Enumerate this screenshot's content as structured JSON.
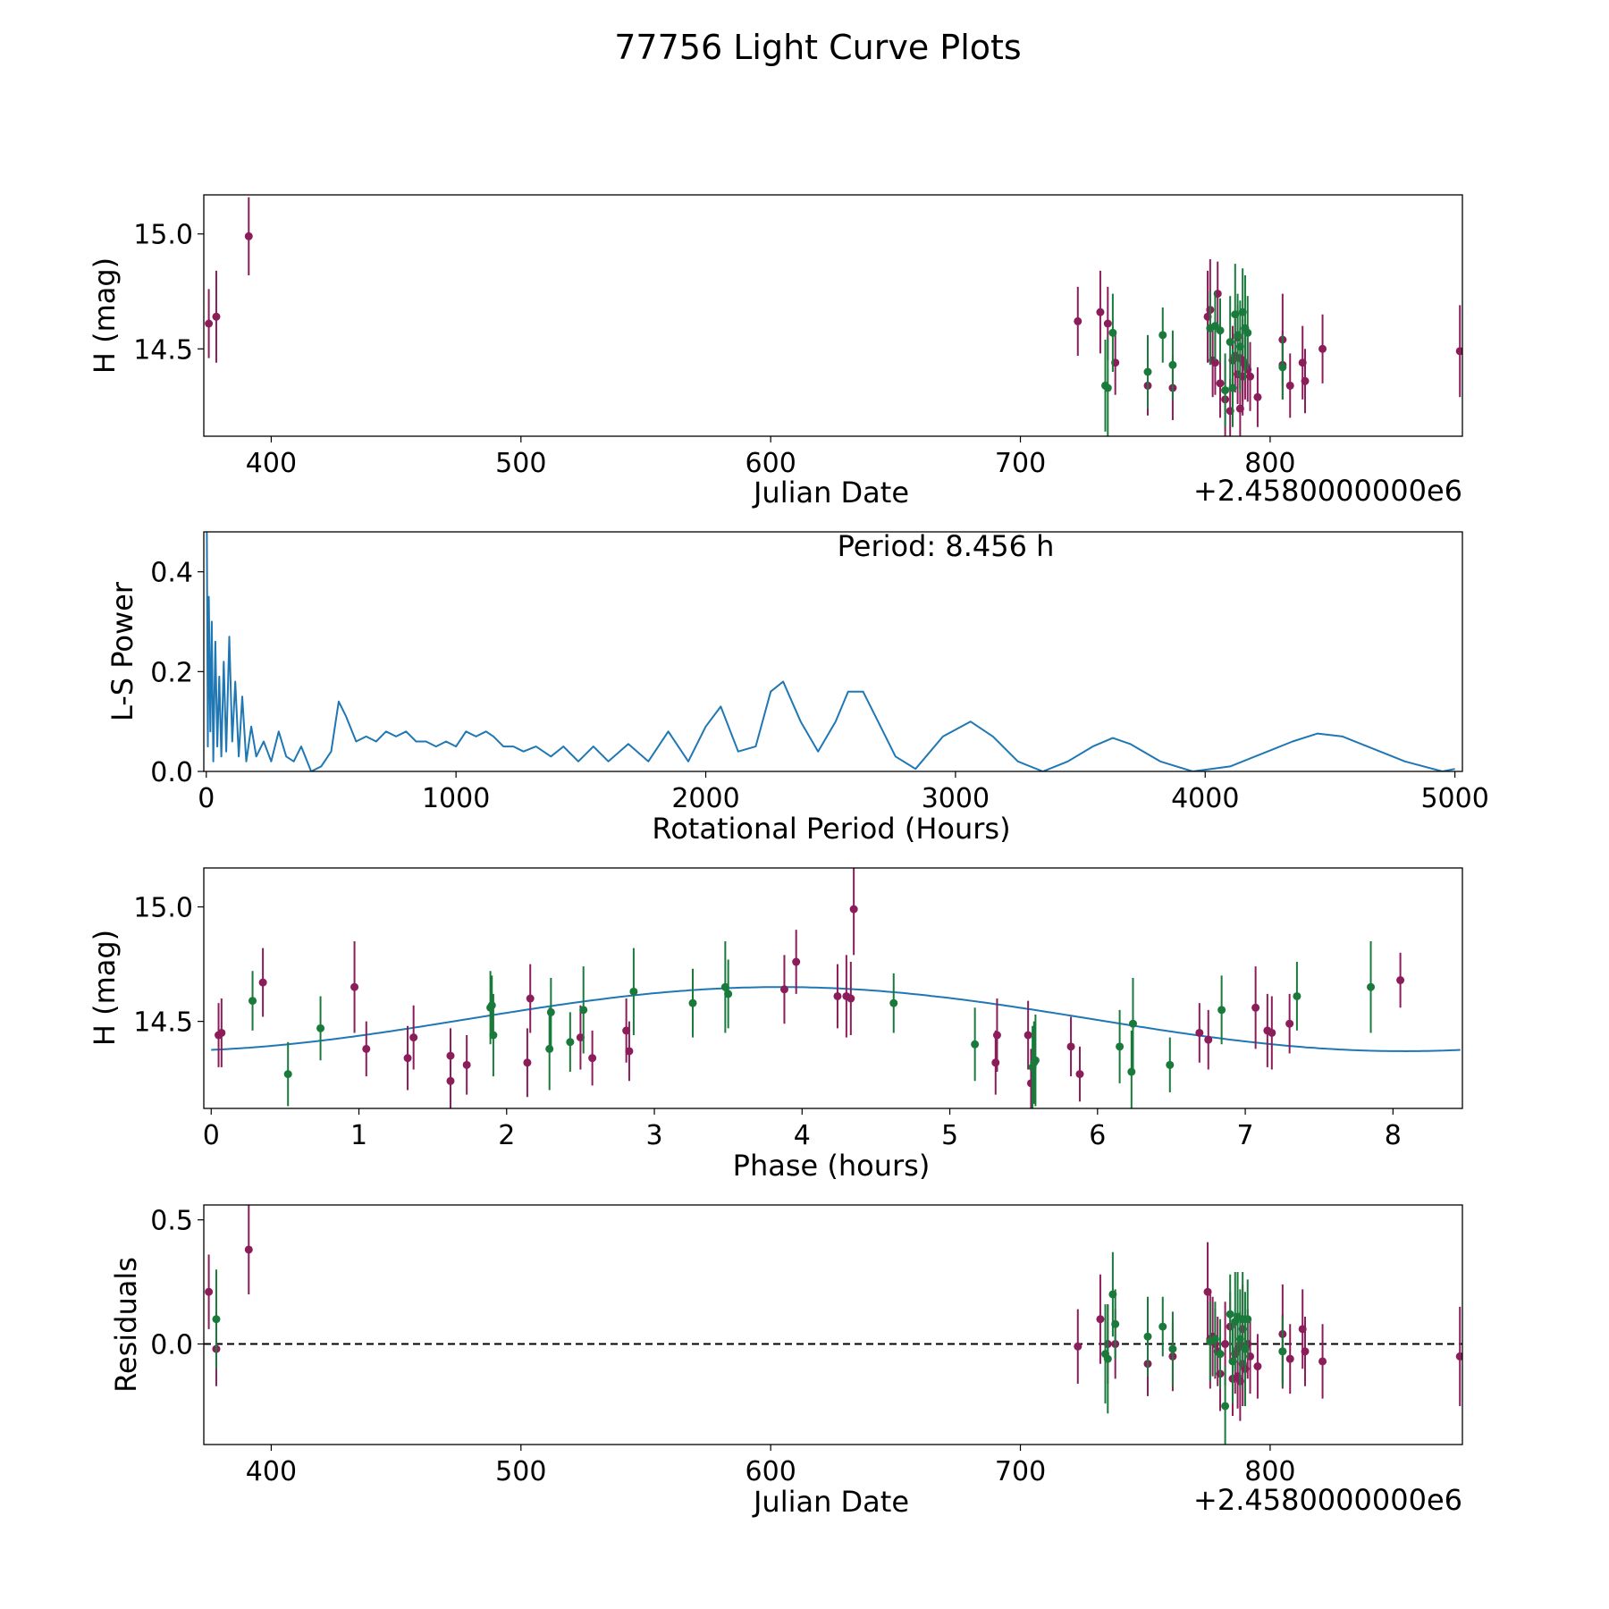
{
  "figure_title": "77756 Light Curve Plots",
  "colors": {
    "magenta": "#8b1e5a",
    "green": "#1a7a3c",
    "curve": "#1f77b4",
    "zero_line": "#000000"
  },
  "chart_data": [
    {
      "id": "lightcurve",
      "type": "scatter",
      "title": "",
      "xlabel": "Julian Date",
      "ylabel": "H (mag)",
      "x_offset_label": "+2.4580000000e6",
      "xlim": [
        373,
        877
      ],
      "ylim": [
        14.12,
        15.17
      ],
      "xticks": [
        400,
        500,
        600,
        700,
        800
      ],
      "yticks": [
        14.5,
        15.0
      ],
      "series": [
        {
          "name": "band-1",
          "color": "#8b1e5a",
          "x": [
            375,
            378,
            391,
            723,
            732,
            735,
            738,
            751,
            761,
            775,
            776,
            777,
            778,
            779,
            780,
            782,
            784,
            785,
            786,
            787,
            787,
            788,
            788,
            789,
            789,
            790,
            791,
            792,
            795,
            805,
            805,
            808,
            813,
            814,
            821,
            876
          ],
          "y": [
            14.61,
            14.64,
            14.99,
            14.62,
            14.66,
            14.61,
            14.44,
            14.34,
            14.33,
            14.64,
            14.67,
            14.45,
            14.44,
            14.74,
            14.35,
            14.28,
            14.23,
            14.45,
            14.47,
            14.39,
            14.55,
            14.24,
            14.46,
            14.38,
            14.45,
            14.43,
            14.41,
            14.38,
            14.29,
            14.54,
            14.43,
            14.34,
            14.44,
            14.36,
            14.5,
            14.49
          ],
          "yerr": [
            0.15,
            0.2,
            0.17,
            0.15,
            0.18,
            0.16,
            0.14,
            0.13,
            0.14,
            0.2,
            0.22,
            0.16,
            0.14,
            0.14,
            0.15,
            0.17,
            0.14,
            0.15,
            0.16,
            0.13,
            0.14,
            0.16,
            0.13,
            0.17,
            0.18,
            0.15,
            0.14,
            0.15,
            0.13,
            0.2,
            0.15,
            0.14,
            0.16,
            0.14,
            0.15,
            0.2
          ]
        },
        {
          "name": "band-2",
          "color": "#1a7a3c",
          "x": [
            734,
            735,
            737,
            751,
            757,
            761,
            776,
            778,
            780,
            782,
            784,
            785,
            786,
            787,
            788,
            789,
            790,
            791,
            805
          ],
          "y": [
            14.34,
            14.33,
            14.57,
            14.4,
            14.56,
            14.43,
            14.59,
            14.6,
            14.58,
            14.32,
            14.53,
            14.33,
            14.65,
            14.56,
            14.51,
            14.66,
            14.59,
            14.57,
            14.42
          ],
          "yerr": [
            0.2,
            0.22,
            0.17,
            0.16,
            0.12,
            0.15,
            0.16,
            0.15,
            0.14,
            0.16,
            0.2,
            0.17,
            0.22,
            0.18,
            0.2,
            0.19,
            0.23,
            0.16,
            0.14
          ]
        }
      ]
    },
    {
      "id": "periodogram",
      "type": "line",
      "title": "",
      "annotation": "Period: 8.456 h",
      "xlabel": "Rotational Period (Hours)",
      "ylabel": "L-S Power",
      "xlim": [
        -10,
        5030
      ],
      "ylim": [
        0,
        0.48
      ],
      "xticks": [
        0,
        1000,
        2000,
        3000,
        4000,
        5000
      ],
      "yticks": [
        0.0,
        0.2,
        0.4
      ],
      "series": [
        {
          "name": "L-S Power",
          "color": "#1f77b4",
          "x": [
            2,
            6,
            10,
            16,
            22,
            28,
            36,
            44,
            52,
            60,
            70,
            80,
            92,
            104,
            116,
            130,
            144,
            160,
            180,
            200,
            230,
            260,
            290,
            320,
            350,
            380,
            420,
            460,
            500,
            530,
            560,
            600,
            640,
            680,
            720,
            760,
            800,
            840,
            880,
            920,
            960,
            1000,
            1040,
            1080,
            1120,
            1150,
            1190,
            1230,
            1270,
            1320,
            1380,
            1430,
            1490,
            1550,
            1610,
            1690,
            1770,
            1850,
            1930,
            2000,
            2060,
            2130,
            2200,
            2260,
            2310,
            2380,
            2450,
            2520,
            2570,
            2630,
            2690,
            2760,
            2840,
            2950,
            3060,
            3150,
            3250,
            3350,
            3450,
            3550,
            3630,
            3700,
            3820,
            3950,
            4100,
            4250,
            4350,
            4450,
            4550,
            4650,
            4800,
            4950,
            5000
          ],
          "y": [
            0.48,
            0.05,
            0.35,
            0.08,
            0.3,
            0.02,
            0.26,
            0.05,
            0.19,
            0.03,
            0.22,
            0.04,
            0.27,
            0.06,
            0.18,
            0.03,
            0.15,
            0.02,
            0.09,
            0.03,
            0.06,
            0.02,
            0.08,
            0.03,
            0.02,
            0.05,
            0.0,
            0.01,
            0.04,
            0.14,
            0.11,
            0.06,
            0.07,
            0.06,
            0.08,
            0.07,
            0.08,
            0.06,
            0.06,
            0.05,
            0.06,
            0.05,
            0.08,
            0.07,
            0.08,
            0.07,
            0.05,
            0.05,
            0.04,
            0.05,
            0.03,
            0.05,
            0.02,
            0.05,
            0.02,
            0.055,
            0.02,
            0.08,
            0.02,
            0.09,
            0.13,
            0.04,
            0.05,
            0.16,
            0.18,
            0.1,
            0.04,
            0.1,
            0.16,
            0.16,
            0.1,
            0.03,
            0.005,
            0.07,
            0.1,
            0.07,
            0.02,
            0.0,
            0.02,
            0.05,
            0.067,
            0.055,
            0.02,
            0.0,
            0.01,
            0.04,
            0.06,
            0.076,
            0.07,
            0.05,
            0.02,
            0.0,
            0.005
          ]
        }
      ]
    },
    {
      "id": "phased",
      "type": "scatter",
      "title": "",
      "xlabel": "Phase (hours)",
      "ylabel": "H (mag)",
      "xlim": [
        -0.05,
        8.47
      ],
      "ylim": [
        14.12,
        15.17
      ],
      "xticks": [
        0,
        1,
        2,
        3,
        4,
        5,
        6,
        7,
        8
      ],
      "yticks": [
        14.5,
        15.0
      ],
      "fit": {
        "type": "sinusoid",
        "mean": 14.51,
        "amplitude": 0.14,
        "peak_phase": 3.85,
        "period": 8.456,
        "color": "#1f77b4"
      },
      "series": [
        {
          "name": "band-1",
          "color": "#8b1e5a",
          "x": [
            0.05,
            0.07,
            0.35,
            0.97,
            1.05,
            1.33,
            1.37,
            1.62,
            1.62,
            1.73,
            2.14,
            2.16,
            2.5,
            2.58,
            2.81,
            2.83,
            3.88,
            3.96,
            4.24,
            4.3,
            4.33,
            4.35,
            5.31,
            5.32,
            5.53,
            5.55,
            5.82,
            5.88,
            6.69,
            6.75,
            7.07,
            7.15,
            7.18,
            7.3,
            8.05
          ],
          "y": [
            14.44,
            14.45,
            14.67,
            14.65,
            14.38,
            14.34,
            14.43,
            14.35,
            14.24,
            14.31,
            14.32,
            14.6,
            14.43,
            14.34,
            14.46,
            14.37,
            14.64,
            14.76,
            14.61,
            14.61,
            14.6,
            14.99,
            14.32,
            14.44,
            14.44,
            14.23,
            14.39,
            14.27,
            14.45,
            14.42,
            14.56,
            14.46,
            14.45,
            14.49,
            14.68
          ],
          "yerr": [
            0.14,
            0.15,
            0.15,
            0.2,
            0.12,
            0.14,
            0.14,
            0.12,
            0.14,
            0.13,
            0.15,
            0.15,
            0.14,
            0.12,
            0.14,
            0.13,
            0.15,
            0.14,
            0.14,
            0.18,
            0.16,
            0.2,
            0.14,
            0.16,
            0.15,
            0.15,
            0.13,
            0.12,
            0.13,
            0.13,
            0.18,
            0.16,
            0.16,
            0.13,
            0.12
          ]
        },
        {
          "name": "band-2",
          "color": "#1a7a3c",
          "x": [
            0.28,
            0.52,
            0.74,
            1.89,
            1.9,
            1.91,
            2.29,
            2.3,
            2.43,
            2.52,
            2.86,
            3.26,
            3.48,
            3.5,
            4.62,
            5.17,
            5.56,
            5.57,
            5.58,
            6.15,
            6.23,
            6.24,
            6.49,
            6.84,
            7.35,
            7.85
          ],
          "y": [
            14.59,
            14.27,
            14.47,
            14.56,
            14.57,
            14.44,
            14.38,
            14.54,
            14.41,
            14.55,
            14.63,
            14.58,
            14.65,
            14.62,
            14.58,
            14.4,
            14.3,
            14.32,
            14.33,
            14.39,
            14.28,
            14.49,
            14.31,
            14.55,
            14.61,
            14.65
          ],
          "yerr": [
            0.13,
            0.14,
            0.14,
            0.16,
            0.13,
            0.18,
            0.18,
            0.15,
            0.13,
            0.19,
            0.19,
            0.15,
            0.2,
            0.15,
            0.13,
            0.16,
            0.18,
            0.18,
            0.2,
            0.16,
            0.18,
            0.2,
            0.12,
            0.15,
            0.15,
            0.2
          ]
        }
      ]
    },
    {
      "id": "residuals",
      "type": "scatter",
      "title": "",
      "xlabel": "Julian Date",
      "ylabel": "Residuals",
      "x_offset_label": "+2.4580000000e6",
      "xlim": [
        373,
        877
      ],
      "ylim": [
        -0.405,
        0.56
      ],
      "xticks": [
        400,
        500,
        600,
        700,
        800
      ],
      "yticks": [
        0.0,
        0.5
      ],
      "reference_line": {
        "y": 0,
        "style": "dashed",
        "color": "#000000"
      },
      "series": [
        {
          "name": "band-1",
          "color": "#8b1e5a",
          "x": [
            375,
            378,
            391,
            723,
            732,
            735,
            738,
            751,
            761,
            775,
            776,
            777,
            778,
            779,
            780,
            782,
            784,
            785,
            786,
            787,
            787,
            788,
            788,
            789,
            789,
            790,
            791,
            792,
            795,
            805,
            805,
            808,
            813,
            814,
            821,
            876
          ],
          "y": [
            0.21,
            -0.02,
            0.38,
            -0.01,
            0.1,
            0.0,
            0.0,
            -0.08,
            -0.05,
            0.21,
            0.02,
            0.03,
            0.0,
            -0.03,
            -0.12,
            0.0,
            0.07,
            -0.14,
            -0.04,
            -0.13,
            -0.02,
            -0.15,
            0.0,
            -0.08,
            0.06,
            -0.1,
            0.0,
            -0.05,
            -0.09,
            0.04,
            -0.03,
            -0.06,
            0.06,
            -0.03,
            -0.07,
            -0.05
          ],
          "yerr": [
            0.15,
            0.15,
            0.18,
            0.15,
            0.18,
            0.16,
            0.14,
            0.13,
            0.14,
            0.2,
            0.2,
            0.16,
            0.14,
            0.14,
            0.15,
            0.17,
            0.14,
            0.15,
            0.16,
            0.13,
            0.14,
            0.16,
            0.13,
            0.17,
            0.18,
            0.15,
            0.14,
            0.15,
            0.13,
            0.2,
            0.15,
            0.14,
            0.16,
            0.14,
            0.15,
            0.2
          ]
        },
        {
          "name": "band-2",
          "color": "#1a7a3c",
          "x": [
            378,
            734,
            735,
            737,
            738,
            751,
            757,
            761,
            776,
            778,
            780,
            782,
            784,
            785,
            786,
            787,
            788,
            789,
            790,
            791,
            805
          ],
          "y": [
            0.1,
            -0.04,
            -0.06,
            0.2,
            0.08,
            0.03,
            0.07,
            -0.02,
            0.01,
            0.02,
            -0.04,
            -0.25,
            0.12,
            -0.07,
            0.09,
            0.11,
            0.02,
            0.1,
            -0.02,
            0.1,
            -0.03
          ],
          "yerr": [
            0.2,
            0.2,
            0.22,
            0.17,
            0.14,
            0.16,
            0.12,
            0.15,
            0.16,
            0.15,
            0.14,
            0.16,
            0.16,
            0.17,
            0.2,
            0.18,
            0.2,
            0.19,
            0.23,
            0.16,
            0.14
          ]
        }
      ]
    }
  ]
}
